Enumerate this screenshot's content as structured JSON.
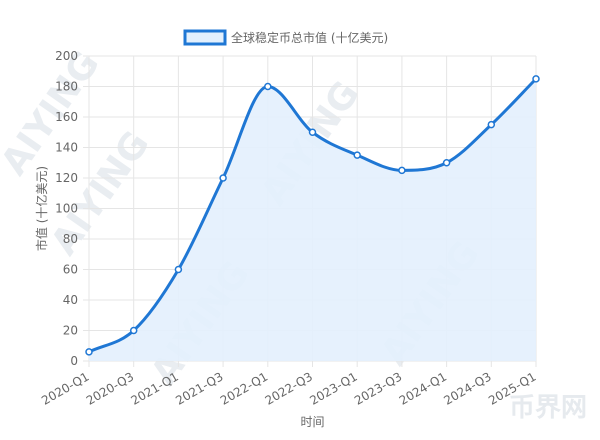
{
  "watermark": {
    "text": "AIYING",
    "logo_text": "币界网"
  },
  "chart_data": {
    "type": "area",
    "categories": [
      "2020-Q1",
      "2020-Q3",
      "2021-Q1",
      "2021-Q3",
      "2022-Q1",
      "2022-Q3",
      "2023-Q1",
      "2023-Q3",
      "2024-Q1",
      "2024-Q3",
      "2025-Q1"
    ],
    "series": [
      {
        "name": "全球稳定币总市值 (十亿美元)",
        "values": [
          6,
          20,
          60,
          120,
          180,
          150,
          135,
          125,
          130,
          155,
          185
        ]
      }
    ],
    "xlabel": "时间",
    "ylabel": "市值 (十亿美元)",
    "ylim": [
      0,
      200
    ],
    "yticks": [
      0,
      20,
      40,
      60,
      80,
      100,
      120,
      140,
      160,
      180,
      200
    ],
    "grid": true,
    "legend_position": "top",
    "curve": "smooth",
    "colors": {
      "line": "#1f77d4",
      "fill": "#e3f0fd",
      "grid": "#e5e5e5",
      "text": "#666666"
    }
  }
}
